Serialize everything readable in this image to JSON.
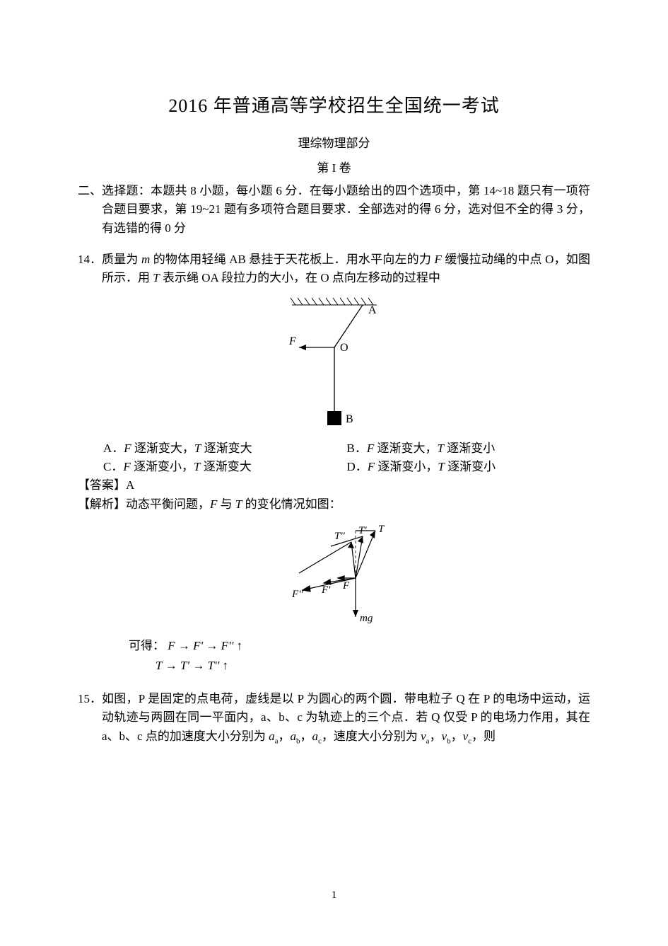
{
  "title": "2016 年普通高等学校招生全国统一考试",
  "subtitle": "理综物理部分",
  "part": "第 I 卷",
  "section2": {
    "num": "二、",
    "text": "选择题：本题共 8 小题，每小题 6 分．在每小题给出的四个选项中，第 14~18 题只有一项符合题目要求，第 19~21 题有多项符合题目要求．全部选对的得 6 分，选对但不全的得 3 分，有选错的得 0 分"
  },
  "q14": {
    "num": "14．",
    "stem_html": "质量为 <span class=\"italic\">m</span> 的物体用轻绳 AB 悬挂于天花板上．用水平向左的力 <span class=\"italic\">F</span> 缓慢拉动绳的中点 O，如图所示．用 <span class=\"italic\">T</span> 表示绳 OA 段拉力的大小，在 O 点向左移动的过程中",
    "fig1": {
      "bg": "#ffffff",
      "stroke": "#000000",
      "label_F": "F",
      "label_O": "O",
      "label_A": "A",
      "label_B": "B"
    },
    "optA_html": "A．<span class=\"italic\">F</span> 逐渐变大，<span class=\"italic\">T</span> 逐渐变大",
    "optB_html": "B．<span class=\"italic\">F</span> 逐渐变大，<span class=\"italic\">T</span> 逐渐变小",
    "optC_html": "C．<span class=\"italic\">F</span> 逐渐变小，<span class=\"italic\">T</span> 逐渐变大",
    "optD_html": "D．<span class=\"italic\">F</span> 逐渐变小，<span class=\"italic\">T</span> 逐渐变小",
    "answer": "【答案】A",
    "analysis_html": "【解析】动态平衡问题，<span class=\"italic\">F</span> 与 <span class=\"italic\">T</span> 的变化情况如图：",
    "fig2": {
      "stroke": "#000000",
      "label_T": "T",
      "label_Tp": "T'",
      "label_Tpp": "T''",
      "label_F": "F",
      "label_Fp": "F'",
      "label_Fpp": "F''",
      "label_mg": "mg"
    },
    "conclusion_lead": "可得：",
    "rel1_html": "<span class=\"italic\">F</span> → <span class=\"italic\">F'</span> → <span class=\"italic\">F''</span> ↑",
    "rel2_html": "<span class=\"italic\">T</span> → <span class=\"italic\">T'</span> → <span class=\"italic\">T''</span> ↑"
  },
  "q15": {
    "num": "15．",
    "stem_html": "如图，P 是固定的点电荷，虚线是以 P 为圆心的两个圆．带电粒子 Q 在 P 的电场中运动，运动轨迹与两圆在同一平面内，a、b、c 为轨迹上的三个点．若 Q 仅受 P 的电场力作用，其在 a、b、c 点的加速度大小分别为 <span class=\"italic\">a</span><span class=\"sub\">a</span>，<span class=\"italic\">a</span><span class=\"sub\">b</span>，<span class=\"italic\">a</span><span class=\"sub\">c</span>，速度大小分别为 <span class=\"italic\">v</span><span class=\"sub\">a</span>，<span class=\"italic\">v</span><span class=\"sub\">b</span>，<span class=\"italic\">v</span><span class=\"sub\">c</span>，则"
  },
  "pagenum": "1"
}
